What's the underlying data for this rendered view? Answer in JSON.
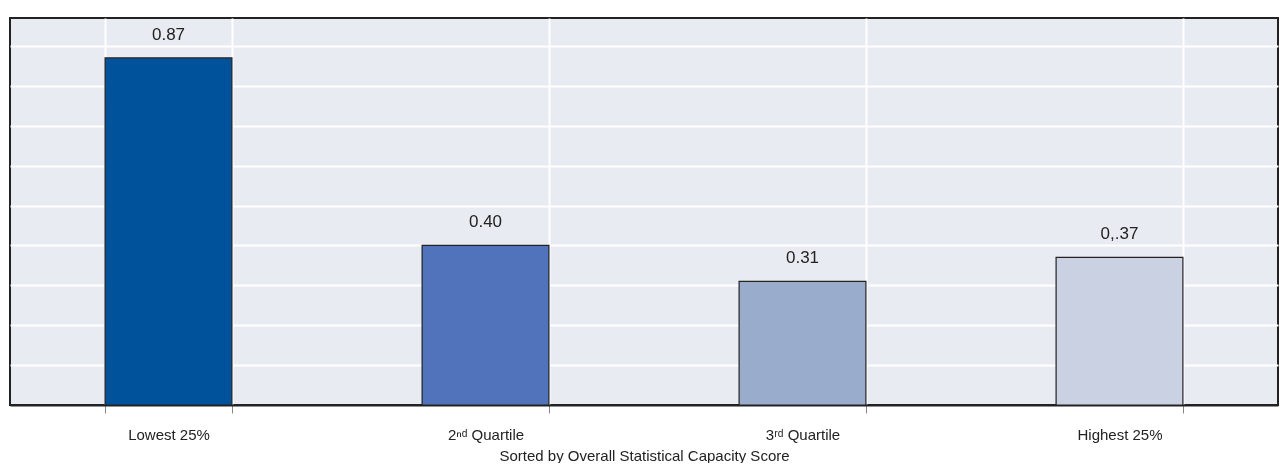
{
  "chart_data": {
    "type": "bar",
    "xlabel": "Sorted by Overall Statistical Capacity Score",
    "categories": [
      "Lowest 25%",
      "2ⁿᵈ Quartile",
      "3ʳᵈ Quartile",
      "Highest 25%"
    ],
    "values": [
      0.87,
      0.4,
      0.31,
      0.37
    ],
    "value_labels": [
      "0.87",
      "0.40",
      "0.31",
      "0,.37"
    ],
    "colors": [
      "#00529b",
      "#5073bb",
      "#9aaccc",
      "#c9d1e3"
    ],
    "ylim": [
      0,
      0.97
    ],
    "yticks": [
      {
        "value": 0.1,
        "label": null
      },
      {
        "value": 0.2,
        "label": null
      },
      {
        "value": 0.3,
        "label": null
      },
      {
        "value": 0.4,
        "label": null
      },
      {
        "value": 0.5,
        "label": null
      },
      {
        "value": 0.6,
        "label": null
      },
      {
        "value": 0.7,
        "label": null
      },
      {
        "value": 0.8,
        "label": null
      },
      {
        "value": 0.9,
        "label": null
      }
    ],
    "tick_labels": "x",
    "grid": true
  }
}
